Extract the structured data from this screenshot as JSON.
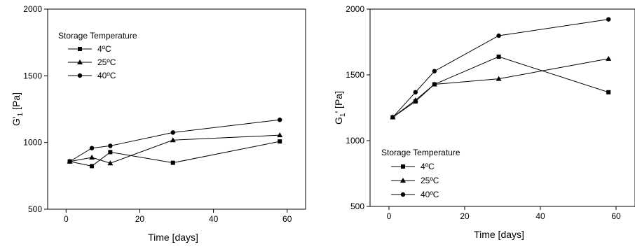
{
  "chart_data": [
    {
      "type": "line",
      "xlabel": "Time [days]",
      "ylabel_main": "G'",
      "ylabel_sub": "1",
      "ylabel_unit": " [Pa]",
      "xlim": [
        -5,
        65
      ],
      "ylim": [
        500,
        2000
      ],
      "xticks": [
        "0",
        "20",
        "40",
        "60"
      ],
      "xtick_values": [
        0,
        20,
        40,
        60
      ],
      "yticks": [
        "500",
        "1000",
        "1500",
        "2000"
      ],
      "ytick_values": [
        500,
        1000,
        1500,
        2000
      ],
      "legend_title": "Storage Temperature",
      "legend_position": "top-left",
      "x": [
        1,
        7,
        12,
        29,
        58
      ],
      "series": [
        {
          "name": "4ºC",
          "marker": "square",
          "values": [
            858,
            823,
            928,
            848,
            1008
          ]
        },
        {
          "name": "25ºC",
          "marker": "triangle",
          "values": [
            858,
            888,
            845,
            1018,
            1055
          ]
        },
        {
          "name": "40ºC",
          "marker": "circle",
          "values": [
            858,
            958,
            975,
            1075,
            1170
          ]
        }
      ]
    },
    {
      "type": "line",
      "xlabel": "Time [days]",
      "ylabel_main": "G",
      "ylabel_sub": "1",
      "ylabel_unit": "' [Pa]",
      "xlim": [
        -5,
        65
      ],
      "ylim": [
        500,
        2000
      ],
      "xticks": [
        "0",
        "20",
        "40",
        "60"
      ],
      "xtick_values": [
        0,
        20,
        40,
        60
      ],
      "yticks": [
        "500",
        "1000",
        "1500",
        "2000"
      ],
      "ytick_values": [
        500,
        1000,
        1500,
        2000
      ],
      "legend_title": "Storage Temperature",
      "legend_position": "bottom-left",
      "x": [
        1,
        7,
        12,
        29,
        58
      ],
      "series": [
        {
          "name": "4ºC",
          "marker": "square",
          "values": [
            1178,
            1298,
            1428,
            1638,
            1368
          ]
        },
        {
          "name": "25ºC",
          "marker": "triangle",
          "values": [
            1178,
            1308,
            1428,
            1470,
            1623
          ]
        },
        {
          "name": "40ºC",
          "marker": "circle",
          "values": [
            1178,
            1368,
            1528,
            1798,
            1922
          ]
        }
      ]
    }
  ]
}
